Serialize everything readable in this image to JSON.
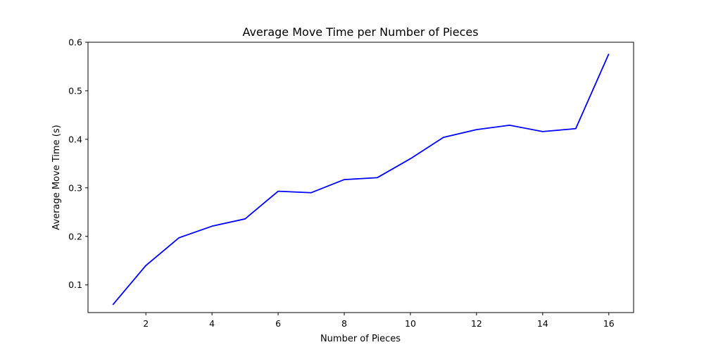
{
  "chart_data": {
    "type": "line",
    "title": "Average Move Time per Number of Pieces",
    "xlabel": "Number of Pieces",
    "ylabel": "Average Move Time (s)",
    "xlim": [
      0.25,
      16.75
    ],
    "ylim": [
      0.043,
      0.6
    ],
    "xticks": [
      2,
      4,
      6,
      8,
      10,
      12,
      14,
      16
    ],
    "yticks": [
      0.1,
      0.2,
      0.3,
      0.4,
      0.5,
      0.6
    ],
    "grid": false,
    "series": [
      {
        "color": "#0000ff",
        "x": [
          1,
          2,
          3,
          4,
          5,
          6,
          7,
          8,
          9,
          10,
          11,
          12,
          13,
          14,
          15,
          16
        ],
        "y": [
          0.059,
          0.14,
          0.197,
          0.221,
          0.236,
          0.293,
          0.29,
          0.317,
          0.321,
          0.36,
          0.404,
          0.42,
          0.429,
          0.416,
          0.422,
          0.576
        ]
      }
    ]
  }
}
